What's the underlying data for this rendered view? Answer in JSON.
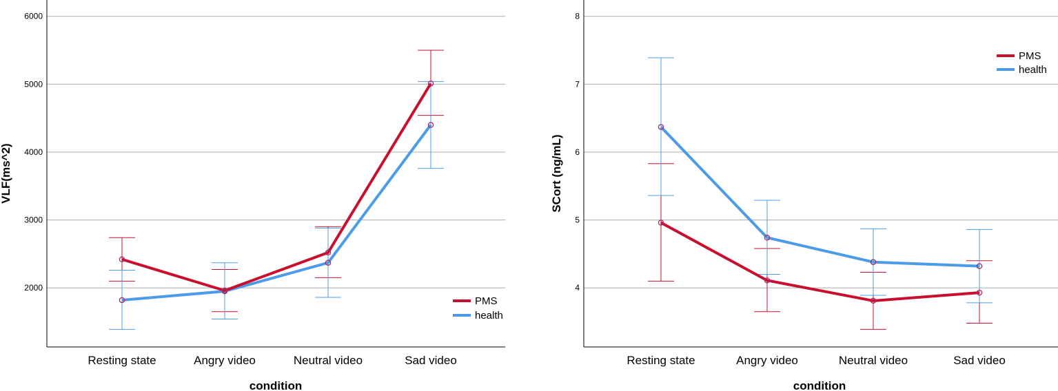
{
  "chart_data": [
    {
      "type": "line",
      "xlabel": "condition",
      "ylabel": "VLF(ms^2)",
      "categories": [
        "Resting state",
        "Angry video",
        "Neutral video",
        "Sad video"
      ],
      "yticks": [
        "2000",
        "3000",
        "4000",
        "5000",
        "6000"
      ],
      "ylim": [
        1130,
        6240
      ],
      "grid": true,
      "legend_position": "bottom-right",
      "series": [
        {
          "name": "PMS",
          "color": "#c8102e",
          "values": [
            2420,
            1960,
            2520,
            5010
          ],
          "err_low": [
            2100,
            1650,
            2150,
            4540
          ],
          "err_high": [
            2740,
            2270,
            2900,
            5500
          ]
        },
        {
          "name": "health",
          "color": "#4c9be8",
          "values": [
            1820,
            1950,
            2370,
            4400
          ],
          "err_low": [
            1390,
            1540,
            1860,
            3760
          ],
          "err_high": [
            2260,
            2370,
            2880,
            5040
          ]
        }
      ]
    },
    {
      "type": "line",
      "xlabel": "condition",
      "ylabel": "SCort (ng/mL)",
      "categories": [
        "Resting state",
        "Angry video",
        "Neutral video",
        "Sad video"
      ],
      "yticks": [
        "4",
        "5",
        "6",
        "7",
        "8"
      ],
      "ylim": [
        3.13,
        8.24
      ],
      "grid": true,
      "legend_position": "top-right",
      "series": [
        {
          "name": "PMS",
          "color": "#c8102e",
          "values": [
            4.96,
            4.11,
            3.81,
            3.93
          ],
          "err_low": [
            4.1,
            3.65,
            3.39,
            3.48
          ],
          "err_high": [
            5.83,
            4.58,
            4.23,
            4.4
          ]
        },
        {
          "name": "health",
          "color": "#4c9be8",
          "values": [
            6.37,
            4.74,
            4.38,
            4.32
          ],
          "err_low": [
            5.36,
            4.2,
            3.89,
            3.78
          ],
          "err_high": [
            7.39,
            5.29,
            4.87,
            4.86
          ]
        }
      ]
    }
  ]
}
